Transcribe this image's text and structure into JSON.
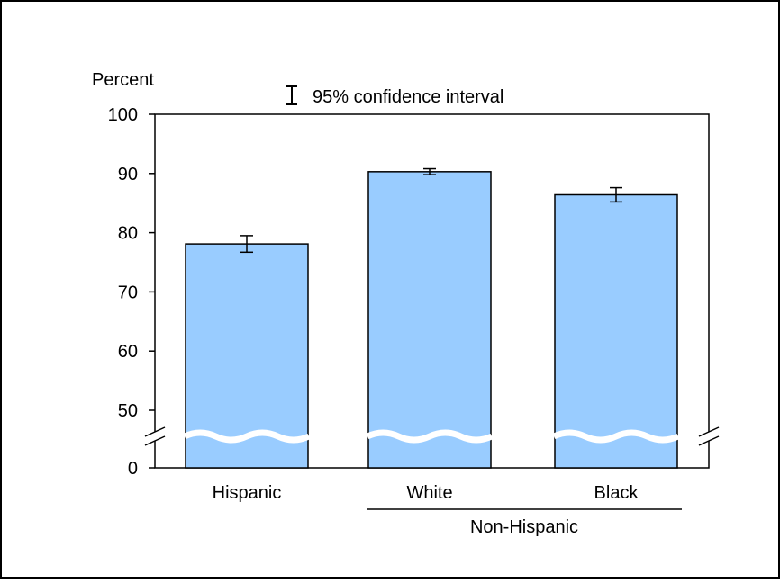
{
  "chart_data": {
    "type": "bar",
    "ylabel": "Percent",
    "legend": {
      "label": "95% confidence interval",
      "placement": "top-center"
    },
    "categories": [
      "Hispanic",
      "White",
      "Black"
    ],
    "group_label": "Non-Hispanic",
    "group_members": [
      "White",
      "Black"
    ],
    "values": [
      78.1,
      90.3,
      86.4
    ],
    "ci_lower": [
      76.7,
      89.8,
      85.2
    ],
    "ci_upper": [
      79.5,
      90.8,
      87.6
    ],
    "y_ticks": [
      0,
      50,
      60,
      70,
      80,
      90,
      100
    ],
    "ylim": [
      0,
      100
    ],
    "axis_break": {
      "between": [
        0,
        50
      ]
    },
    "grid": false,
    "colors": {
      "bar_fill": "#99ccff",
      "bar_stroke": "#000000",
      "break_fill": "#ffffff"
    }
  }
}
